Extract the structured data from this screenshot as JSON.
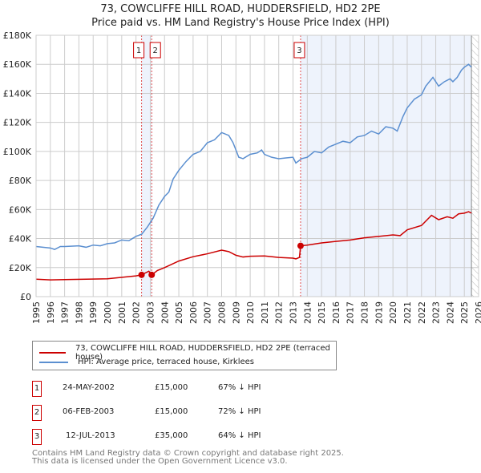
{
  "title": "73, COWCLIFFE HILL ROAD, HUDDERSFIELD, HD2 2PE",
  "subtitle": "Price paid vs. HM Land Registry's House Price Index (HPI)",
  "chart_data": {
    "type": "line",
    "title": "73, COWCLIFFE HILL ROAD, HUDDERSFIELD, HD2 2PE",
    "subtitle": "Price paid vs. HM Land Registry's House Price Index (HPI)",
    "xlim": [
      1995,
      2026
    ],
    "ylim": [
      0,
      180000
    ],
    "x_ticks": [
      "1995",
      "1996",
      "1997",
      "1998",
      "1999",
      "2000",
      "2001",
      "2002",
      "2003",
      "2004",
      "2005",
      "2006",
      "2007",
      "2008",
      "2009",
      "2010",
      "2011",
      "2012",
      "2013",
      "2014",
      "2015",
      "2016",
      "2017",
      "2018",
      "2019",
      "2020",
      "2021",
      "2022",
      "2023",
      "2024",
      "2025",
      "2026"
    ],
    "y_ticks": [
      {
        "v": 0,
        "label": "£0"
      },
      {
        "v": 20000,
        "label": "£20K"
      },
      {
        "v": 40000,
        "label": "£40K"
      },
      {
        "v": 60000,
        "label": "£60K"
      },
      {
        "v": 80000,
        "label": "£80K"
      },
      {
        "v": 100000,
        "label": "£100K"
      },
      {
        "v": 120000,
        "label": "£120K"
      },
      {
        "v": 140000,
        "label": "£140K"
      },
      {
        "v": 160000,
        "label": "£160K"
      },
      {
        "v": 180000,
        "label": "£180K"
      }
    ],
    "grid": true,
    "shaded_ranges": [
      [
        2002.39,
        2003.1
      ],
      [
        2013.53,
        2025.5
      ]
    ],
    "hatched_from": 2025.5,
    "series": [
      {
        "name": "73, COWCLIFFE HILL ROAD, HUDDERSFIELD, HD2 2PE (terraced house)",
        "color": "#cc0000",
        "x": [
          1995,
          1996,
          1997,
          2000,
          2002,
          2002.39,
          2002.9,
          2003.1,
          2003.5,
          2004,
          2005,
          2006,
          2007,
          2008,
          2008.5,
          2009,
          2009.5,
          2010,
          2011,
          2012,
          2013,
          2013.2,
          2013.45,
          2013.53,
          2014,
          2015,
          2016,
          2017,
          2018,
          2019,
          2020,
          2020.5,
          2021,
          2022,
          2022.7,
          2023.2,
          2023.8,
          2024.2,
          2024.6,
          2025,
          2025.3,
          2025.5
        ],
        "y": [
          12000,
          11500,
          11700,
          12300,
          14300,
          15000,
          17500,
          15000,
          18000,
          20000,
          24500,
          27500,
          29500,
          32000,
          31000,
          28500,
          27300,
          27800,
          28000,
          27000,
          26500,
          26000,
          27000,
          35000,
          35500,
          37000,
          38000,
          39000,
          40500,
          41500,
          42500,
          42000,
          46000,
          49000,
          56000,
          53000,
          55000,
          54000,
          57000,
          57500,
          58500,
          57500
        ]
      },
      {
        "name": "HPI: Average price, terraced house, Kirklees",
        "color": "#5b8fd0",
        "x": [
          1995,
          1996,
          1996.3,
          1996.7,
          1997,
          1998,
          1998.5,
          1999,
          1999.5,
          2000,
          2000.5,
          2001,
          2001.5,
          2002,
          2002.4,
          2002.8,
          2003.2,
          2003.6,
          2004,
          2004.3,
          2004.6,
          2005,
          2005.5,
          2006,
          2006.5,
          2007,
          2007.5,
          2008,
          2008.5,
          2008.8,
          2009.2,
          2009.5,
          2010,
          2010.5,
          2010.8,
          2011,
          2011.5,
          2012,
          2012.5,
          2013,
          2013.2,
          2013.6,
          2014,
          2014.5,
          2015,
          2015.5,
          2016,
          2016.5,
          2017,
          2017.5,
          2018,
          2018.5,
          2019,
          2019.5,
          2020,
          2020.3,
          2020.7,
          2021,
          2021.5,
          2022,
          2022.3,
          2022.8,
          2023.2,
          2023.6,
          2024,
          2024.2,
          2024.5,
          2024.8,
          2025,
          2025.3,
          2025.5
        ],
        "y": [
          34500,
          33500,
          32500,
          34500,
          34500,
          35000,
          34000,
          35500,
          35000,
          36500,
          37000,
          39000,
          38500,
          41500,
          43000,
          48000,
          54000,
          63000,
          69000,
          72000,
          81000,
          87000,
          93000,
          98000,
          100000,
          106000,
          108000,
          113000,
          111000,
          106000,
          96000,
          95000,
          98000,
          99000,
          101000,
          98000,
          96000,
          95000,
          95500,
          96000,
          92000,
          95000,
          96000,
          100000,
          99000,
          103000,
          105000,
          107000,
          106000,
          110000,
          111000,
          114000,
          112000,
          117000,
          116000,
          114000,
          124000,
          130000,
          136000,
          139000,
          145000,
          151000,
          145000,
          148000,
          150000,
          148000,
          151000,
          156000,
          158000,
          160000,
          158000
        ]
      }
    ],
    "sales": [
      {
        "id": "1",
        "x": 2002.39,
        "y": 15000
      },
      {
        "id": "2",
        "x": 2003.1,
        "y": 15000
      },
      {
        "id": "3",
        "x": 2013.53,
        "y": 35000
      }
    ],
    "legend_position": "below"
  },
  "legend": [
    {
      "label": "73, COWCLIFFE HILL ROAD, HUDDERSFIELD, HD2 2PE (terraced house)",
      "color": "#cc0000"
    },
    {
      "label": "HPI: Average price, terraced house, Kirklees",
      "color": "#5b8fd0"
    }
  ],
  "transactions": [
    {
      "id": "1",
      "date": "24-MAY-2002",
      "price": "£15,000",
      "hpi": "67% ↓ HPI"
    },
    {
      "id": "2",
      "date": "06-FEB-2003",
      "price": "£15,000",
      "hpi": "72% ↓ HPI"
    },
    {
      "id": "3",
      "date": "12-JUL-2013",
      "price": "£35,000",
      "hpi": "64% ↓ HPI"
    }
  ],
  "footer": [
    "Contains HM Land Registry data © Crown copyright and database right 2025.",
    "This data is licensed under the Open Government Licence v3.0."
  ]
}
